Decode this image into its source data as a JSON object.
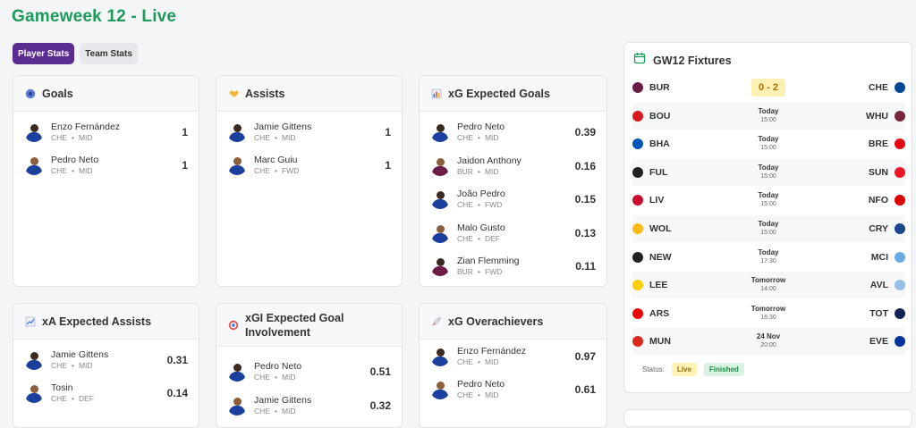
{
  "page": {
    "title": "Gameweek 12 - Live"
  },
  "tabs": [
    {
      "label": "Player Stats",
      "active": true
    },
    {
      "label": "Team Stats",
      "active": false
    }
  ],
  "cards": {
    "goals": {
      "title": "Goals",
      "icon": "soccer-ball-icon",
      "rows": [
        {
          "name": "Enzo Fernández",
          "team": "CHE",
          "pos": "MID",
          "value": "1"
        },
        {
          "name": "Pedro Neto",
          "team": "CHE",
          "pos": "MID",
          "value": "1"
        }
      ]
    },
    "assists": {
      "title": "Assists",
      "icon": "handshake-icon",
      "rows": [
        {
          "name": "Jamie Gittens",
          "team": "CHE",
          "pos": "MID",
          "value": "1"
        },
        {
          "name": "Marc Guiu",
          "team": "CHE",
          "pos": "FWD",
          "value": "1"
        }
      ]
    },
    "xg": {
      "title": "xG Expected Goals",
      "icon": "bar-chart-icon",
      "rows": [
        {
          "name": "Pedro Neto",
          "team": "CHE",
          "pos": "MID",
          "value": "0.39"
        },
        {
          "name": "Jaidon Anthony",
          "team": "BUR",
          "pos": "MID",
          "value": "0.16"
        },
        {
          "name": "João Pedro",
          "team": "CHE",
          "pos": "FWD",
          "value": "0.15"
        },
        {
          "name": "Malo Gusto",
          "team": "CHE",
          "pos": "DEF",
          "value": "0.13"
        },
        {
          "name": "Zian Flemming",
          "team": "BUR",
          "pos": "FWD",
          "value": "0.11"
        }
      ]
    },
    "xa": {
      "title": "xA Expected Assists",
      "icon": "trend-chart-icon",
      "rows": [
        {
          "name": "Jamie Gittens",
          "team": "CHE",
          "pos": "MID",
          "value": "0.31"
        },
        {
          "name": "Tosin",
          "team": "CHE",
          "pos": "DEF",
          "value": "0.14"
        }
      ]
    },
    "xgi": {
      "title": "xGI Expected Goal Involvement",
      "icon": "target-icon",
      "rows": [
        {
          "name": "Pedro Neto",
          "team": "CHE",
          "pos": "MID",
          "value": "0.51"
        },
        {
          "name": "Jamie Gittens",
          "team": "CHE",
          "pos": "MID",
          "value": "0.32"
        }
      ]
    },
    "xgo": {
      "title": "xG Overachievers",
      "icon": "rocket-icon",
      "rows": [
        {
          "name": "Enzo Fernández",
          "team": "CHE",
          "pos": "MID",
          "value": "0.97"
        },
        {
          "name": "Pedro Neto",
          "team": "CHE",
          "pos": "MID",
          "value": "0.61"
        }
      ]
    }
  },
  "meta_sep": "•",
  "fixtures": {
    "title": "GW12 Fixtures",
    "icon": "calendar-icon",
    "rows": [
      {
        "home": "BUR",
        "away": "CHE",
        "score": "0 - 2",
        "when": "",
        "time": "",
        "home_color": "#6c1d45",
        "away_color": "#034694"
      },
      {
        "home": "BOU",
        "away": "WHU",
        "score": "",
        "when": "Today",
        "time": "15:00",
        "home_color": "#d71920",
        "away_color": "#7a263a"
      },
      {
        "home": "BHA",
        "away": "BRE",
        "score": "",
        "when": "Today",
        "time": "15:00",
        "home_color": "#0057b8",
        "away_color": "#e30613"
      },
      {
        "home": "FUL",
        "away": "SUN",
        "score": "",
        "when": "Today",
        "time": "15:00",
        "home_color": "#222222",
        "away_color": "#eb172b"
      },
      {
        "home": "LIV",
        "away": "NFO",
        "score": "",
        "when": "Today",
        "time": "15:00",
        "home_color": "#c8102e",
        "away_color": "#dd0000"
      },
      {
        "home": "WOL",
        "away": "CRY",
        "score": "",
        "when": "Today",
        "time": "15:00",
        "home_color": "#fdb913",
        "away_color": "#1b458f"
      },
      {
        "home": "NEW",
        "away": "MCI",
        "score": "",
        "when": "Today",
        "time": "17:30",
        "home_color": "#241f20",
        "away_color": "#6cabdd"
      },
      {
        "home": "LEE",
        "away": "AVL",
        "score": "",
        "when": "Tomorrow",
        "time": "14:00",
        "home_color": "#ffcd00",
        "away_color": "#95bfe5"
      },
      {
        "home": "ARS",
        "away": "TOT",
        "score": "",
        "when": "Tomorrow",
        "time": "16:30",
        "home_color": "#ef0107",
        "away_color": "#132257"
      },
      {
        "home": "MUN",
        "away": "EVE",
        "score": "",
        "when": "24 Nov",
        "time": "20:00",
        "home_color": "#da291c",
        "away_color": "#003399"
      }
    ],
    "status_label": "Status:",
    "status_live": "Live",
    "status_finished": "Finished"
  }
}
